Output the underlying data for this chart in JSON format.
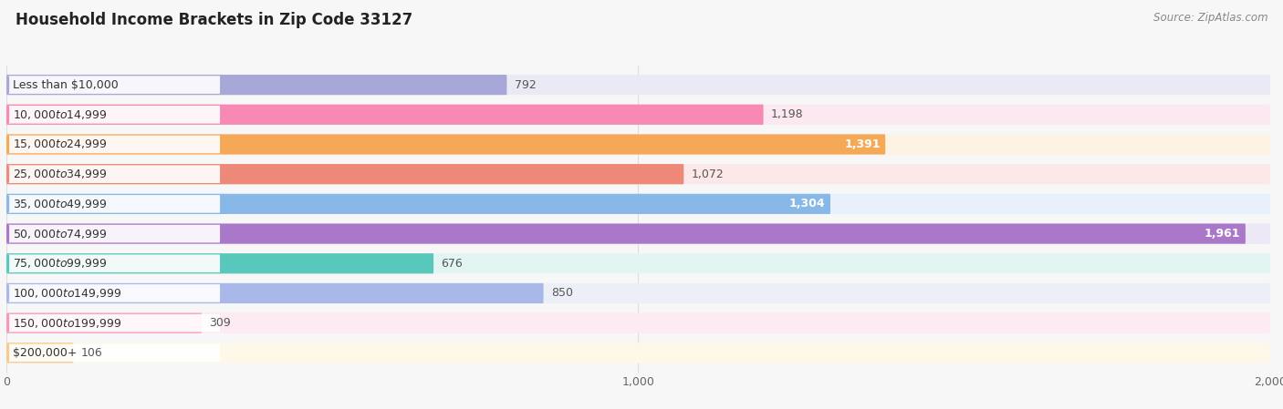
{
  "title": "Household Income Brackets in Zip Code 33127",
  "source": "Source: ZipAtlas.com",
  "categories": [
    "Less than $10,000",
    "$10,000 to $14,999",
    "$15,000 to $24,999",
    "$25,000 to $34,999",
    "$35,000 to $49,999",
    "$50,000 to $74,999",
    "$75,000 to $99,999",
    "$100,000 to $149,999",
    "$150,000 to $199,999",
    "$200,000+"
  ],
  "values": [
    792,
    1198,
    1391,
    1072,
    1304,
    1961,
    676,
    850,
    309,
    106
  ],
  "bar_colors": [
    "#a8a8d8",
    "#f888b4",
    "#f5a855",
    "#ee8878",
    "#88b8e8",
    "#aa78c8",
    "#58c8bc",
    "#a8b8e8",
    "#f898b8",
    "#f5cc88"
  ],
  "bar_bg_colors": [
    "#eaeaf5",
    "#fce8f0",
    "#fef2e2",
    "#fce8e8",
    "#e8f0fc",
    "#ece8f5",
    "#e2f5f2",
    "#eceff8",
    "#fdeaf2",
    "#fef8e8"
  ],
  "xlim": [
    0,
    2000
  ],
  "xticks": [
    0,
    1000,
    2000
  ],
  "xtick_labels": [
    "0",
    "1,000",
    "2,000"
  ],
  "background_color": "#f7f7f7",
  "grid_color": "#dddddd",
  "title_fontsize": 12,
  "tick_fontsize": 9,
  "bar_label_fontsize": 9,
  "category_fontsize": 9,
  "inside_label_threshold": 1200,
  "label_inside_color": "white",
  "label_outside_color": "#555555"
}
